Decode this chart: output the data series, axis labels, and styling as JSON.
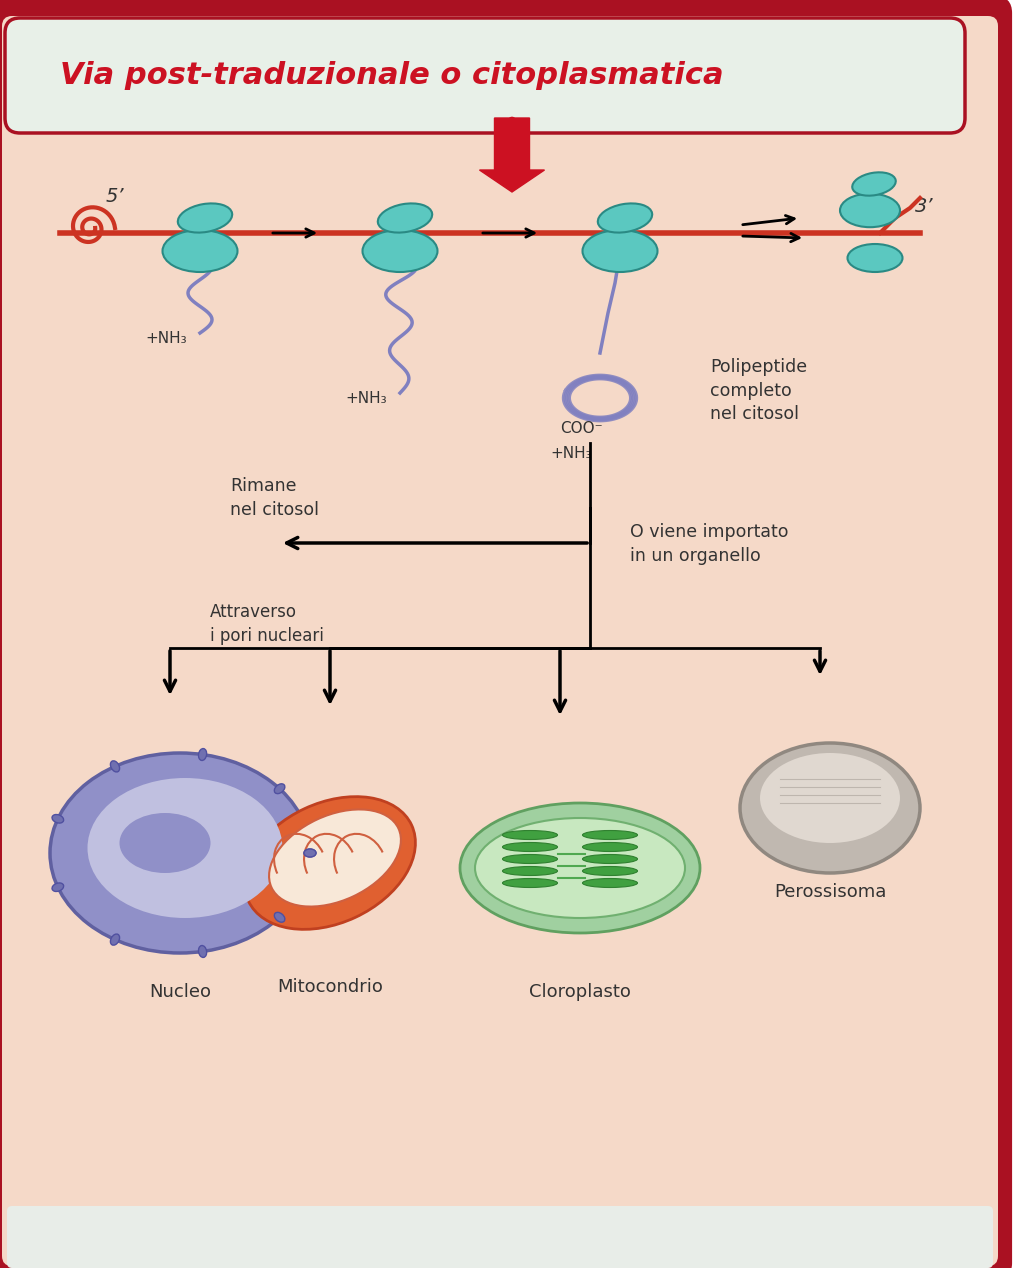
{
  "title": "Via post-traduzionale o citoplasmatica",
  "title_color": "#cc1122",
  "title_bg": "#e8f0e8",
  "bg_color": "#f5d9c8",
  "border_color": "#aa1122",
  "main_bg": "#f5d9c8",
  "label_5prime": "5’",
  "label_3prime": "3’",
  "label_nh3_1": "+NH₃",
  "label_nh3_2": "+NH₃",
  "label_nh3_3": "+NH₃",
  "label_coo": "COO⁻",
  "label_polipeptide": "Polipeptide\ncompleto\nnel citosol",
  "label_rimane": "Rimane\nnel citosol",
  "label_importato": "O viene importato\nin un organello",
  "label_pori": "Attraverso\ni pori nucleari",
  "label_nucleo": "Nucleo",
  "label_mito": "Mitocondrio",
  "label_cloro": "Cloroplasto",
  "label_peross": "Perossisoma",
  "ribosome_color": "#5bc8c0",
  "mrna_color": "#cc3322",
  "polypeptide_color": "#8080c0",
  "nucleus_color": "#9090d0",
  "nucleus_inner": "#b0b0e0",
  "mito_color": "#e06030",
  "mito_inner": "#f0e0d0",
  "chloro_color": "#60a060",
  "chloro_inner": "#c0e0c0",
  "perox_color": "#a09090",
  "perox_inner": "#d0c8c0",
  "arrow_color": "#111111",
  "red_arrow_color": "#cc1122"
}
